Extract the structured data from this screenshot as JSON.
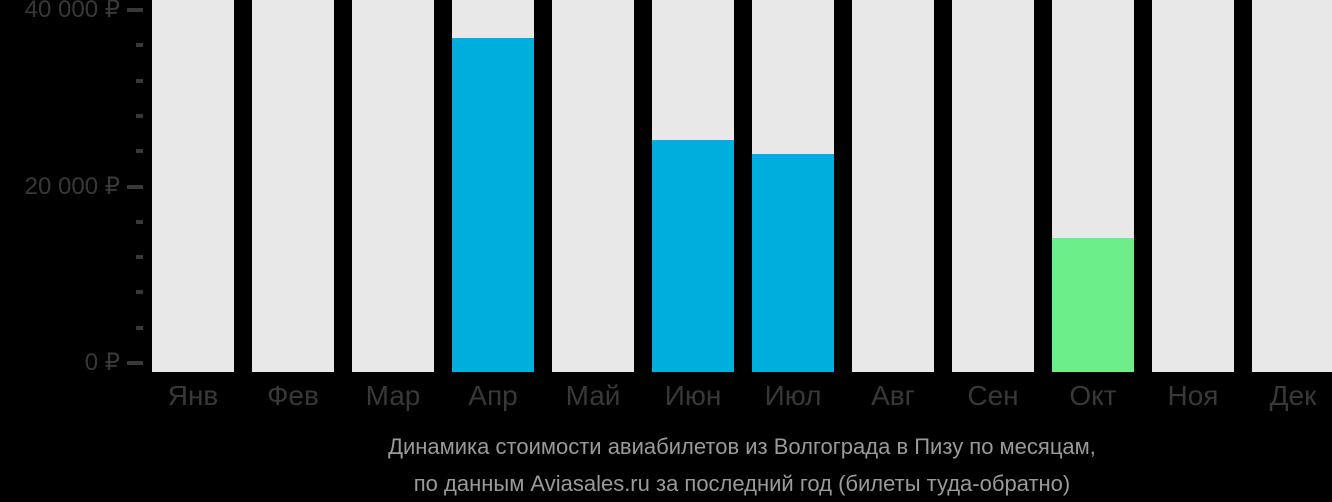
{
  "chart_data": {
    "type": "bar",
    "title": "Динамика стоимости авиабилетов из Волгограда в Пизу по месяцам, по данным Aviasales.ru за последний год (билеты туда-обратно)",
    "categories": [
      "Янв",
      "Фев",
      "Мар",
      "Апр",
      "Май",
      "Июн",
      "Июл",
      "Авг",
      "Сен",
      "Окт",
      "Ноя",
      "Дек"
    ],
    "values": [
      null,
      null,
      null,
      36800,
      null,
      25300,
      23700,
      null,
      null,
      14200,
      null,
      null
    ],
    "bar_colors": [
      null,
      null,
      null,
      "#00aede",
      null,
      "#00aede",
      "#00aede",
      null,
      null,
      "#6cee8b",
      null,
      null
    ],
    "xlabel": "",
    "ylabel": "",
    "ylim": [
      0,
      40000
    ],
    "y_major_ticks": [
      {
        "value": 0,
        "label": "0 ₽"
      },
      {
        "value": 20000,
        "label": "20 000 ₽"
      },
      {
        "value": 40000,
        "label": "40 000 ₽"
      }
    ],
    "y_minor_tick_step": 4000,
    "grid": false,
    "legend": null,
    "placeholder_bars_full_height": true
  },
  "caption": {
    "line1": "Динамика стоимости авиабилетов из Волгограда в Пизу по месяцам,",
    "line2": "по данным Aviasales.ru за последний год (билеты туда-обратно)"
  },
  "colors": {
    "background": "#000000",
    "bar_placeholder": "#e8e8e8",
    "bar_blue": "#00aede",
    "bar_green": "#6cee8b",
    "axis_text": "#383838",
    "tick": "#383838",
    "caption_text": "#9a9a9a"
  }
}
